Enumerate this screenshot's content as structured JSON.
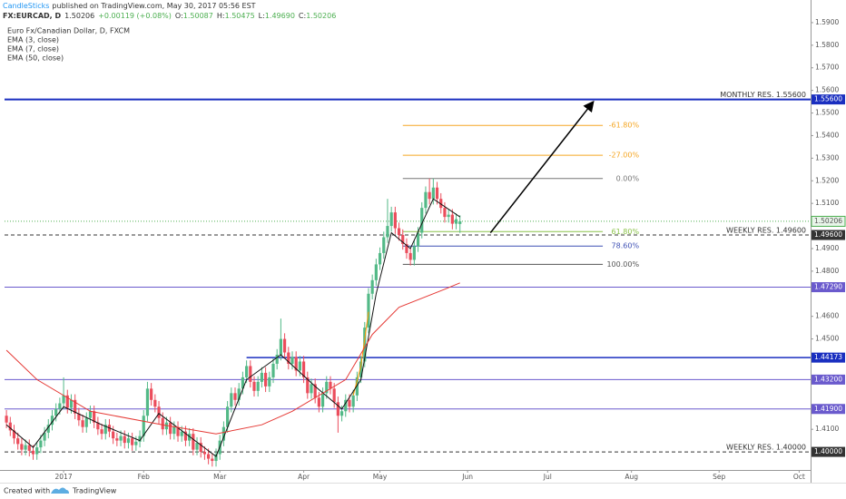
{
  "header": {
    "author": "CandleSticks",
    "published": "published on TradingView.com, May 30, 2017 05:56 EST",
    "symbol": "FX:EURCAD, D",
    "last": "1.50206",
    "change": "+0.00119 (+0.08%)",
    "ohlc": [
      {
        "label": "O:",
        "value": "1.50087"
      },
      {
        "label": "H:",
        "value": "1.50475"
      },
      {
        "label": "L:",
        "value": "1.49690"
      },
      {
        "label": "C:",
        "value": "1.50206"
      }
    ]
  },
  "footer": {
    "text": "Created with",
    "brand": "TradingView"
  },
  "chart_data": {
    "type": "candlestick",
    "title": "Euro Fx/Canadian Dollar, D, FXCM",
    "up_color": "#53b987",
    "down_color": "#eb4d5c",
    "grid": false,
    "ylim": [
      1.392,
      1.596
    ],
    "yticks": [
      {
        "value": 1.41,
        "label": "1.4100"
      },
      {
        "value": 1.45,
        "label": "1.4500"
      },
      {
        "value": 1.46,
        "label": "1.4600"
      },
      {
        "value": 1.48,
        "label": "1.4800"
      },
      {
        "value": 1.49,
        "label": "1.4900"
      },
      {
        "value": 1.51,
        "label": "1.5100"
      },
      {
        "value": 1.52,
        "label": "1.5200"
      },
      {
        "value": 1.53,
        "label": "1.5300"
      },
      {
        "value": 1.54,
        "label": "1.5400"
      },
      {
        "value": 1.55,
        "label": "1.5500"
      },
      {
        "value": 1.56,
        "label": "1.5600"
      },
      {
        "value": 1.57,
        "label": "1.5700"
      },
      {
        "value": 1.58,
        "label": "1.5800"
      },
      {
        "value": 1.59,
        "label": "1.5900"
      }
    ],
    "xlim": [
      -15.5,
      196
    ],
    "xticks": [
      {
        "value": 0,
        "label": "2017"
      },
      {
        "value": 21,
        "label": "Feb"
      },
      {
        "value": 41,
        "label": "Mar"
      },
      {
        "value": 63,
        "label": "Apr"
      },
      {
        "value": 83,
        "label": "May"
      },
      {
        "value": 106,
        "label": "Jun"
      },
      {
        "value": 127,
        "label": "Jul"
      },
      {
        "value": 149,
        "label": "Aug"
      },
      {
        "value": 172,
        "label": "Sep"
      },
      {
        "value": 193,
        "label": "Oct"
      }
    ],
    "x": [
      -15,
      -14,
      -13,
      -12,
      -11,
      -10,
      -9,
      -8,
      -7,
      -6,
      -5,
      -4,
      -3,
      -2,
      -1,
      0,
      1,
      2,
      3,
      4,
      5,
      6,
      7,
      8,
      9,
      10,
      11,
      12,
      13,
      14,
      15,
      16,
      17,
      18,
      19,
      20,
      21,
      22,
      23,
      24,
      25,
      26,
      27,
      28,
      29,
      30,
      31,
      32,
      33,
      34,
      35,
      36,
      37,
      38,
      39,
      40,
      41,
      42,
      43,
      44,
      45,
      46,
      47,
      48,
      49,
      50,
      51,
      52,
      53,
      54,
      55,
      56,
      57,
      58,
      59,
      60,
      61,
      62,
      63,
      64,
      65,
      66,
      67,
      68,
      69,
      70,
      71,
      72,
      73,
      74,
      75,
      76,
      77,
      78,
      79,
      80,
      81,
      82,
      83,
      84,
      85,
      86,
      87,
      88,
      89,
      90,
      91,
      92,
      93,
      94,
      95,
      96,
      97,
      98,
      99,
      100,
      101,
      102,
      103,
      104
    ],
    "candles": [
      [
        1.416,
        1.4185,
        1.4105,
        1.413
      ],
      [
        1.413,
        1.4155,
        1.407,
        1.4095
      ],
      [
        1.4095,
        1.412,
        1.4035,
        1.406
      ],
      [
        1.406,
        1.4085,
        1.401,
        1.4035
      ],
      [
        1.4035,
        1.406,
        1.3985,
        1.401
      ],
      [
        1.401,
        1.4055,
        1.3985,
        1.403
      ],
      [
        1.403,
        1.4055,
        1.398,
        1.4005
      ],
      [
        1.4005,
        1.403,
        1.3965,
        1.399
      ],
      [
        1.399,
        1.4045,
        1.3965,
        1.402
      ],
      [
        1.402,
        1.4075,
        1.3995,
        1.405
      ],
      [
        1.405,
        1.411,
        1.4025,
        1.4085
      ],
      [
        1.4085,
        1.4145,
        1.406,
        1.412
      ],
      [
        1.412,
        1.4185,
        1.4095,
        1.416
      ],
      [
        1.416,
        1.4215,
        1.4135,
        1.419
      ],
      [
        1.419,
        1.424,
        1.4165,
        1.4215
      ],
      [
        1.4215,
        1.433,
        1.419,
        1.425
      ],
      [
        1.425,
        1.4275,
        1.417,
        1.4195
      ],
      [
        1.4195,
        1.4255,
        1.417,
        1.423
      ],
      [
        1.423,
        1.4255,
        1.4145,
        1.417
      ],
      [
        1.417,
        1.4195,
        1.4115,
        1.414
      ],
      [
        1.414,
        1.4165,
        1.4085,
        1.411
      ],
      [
        1.411,
        1.4175,
        1.4085,
        1.415
      ],
      [
        1.415,
        1.4205,
        1.4125,
        1.418
      ],
      [
        1.418,
        1.4205,
        1.4105,
        1.413
      ],
      [
        1.413,
        1.4155,
        1.4075,
        1.41
      ],
      [
        1.41,
        1.4125,
        1.4055,
        1.408
      ],
      [
        1.408,
        1.4145,
        1.4055,
        1.412
      ],
      [
        1.412,
        1.4145,
        1.4065,
        1.409
      ],
      [
        1.409,
        1.4115,
        1.4035,
        1.406
      ],
      [
        1.406,
        1.4085,
        1.4025,
        1.405
      ],
      [
        1.405,
        1.4095,
        1.4025,
        1.407
      ],
      [
        1.407,
        1.4095,
        1.4015,
        1.404
      ],
      [
        1.404,
        1.4085,
        1.4015,
        1.406
      ],
      [
        1.406,
        1.4085,
        1.4005,
        1.403
      ],
      [
        1.403,
        1.407,
        1.4005,
        1.4045
      ],
      [
        1.4045,
        1.4095,
        1.402,
        1.407
      ],
      [
        1.407,
        1.4185,
        1.4045,
        1.416
      ],
      [
        1.416,
        1.431,
        1.4135,
        1.428
      ],
      [
        1.428,
        1.4305,
        1.4205,
        1.423
      ],
      [
        1.423,
        1.4255,
        1.4175,
        1.42
      ],
      [
        1.42,
        1.4225,
        1.4125,
        1.415
      ],
      [
        1.415,
        1.4175,
        1.4075,
        1.41
      ],
      [
        1.41,
        1.4155,
        1.4075,
        1.413
      ],
      [
        1.413,
        1.4155,
        1.4055,
        1.408
      ],
      [
        1.408,
        1.4135,
        1.4055,
        1.411
      ],
      [
        1.411,
        1.4135,
        1.4045,
        1.407
      ],
      [
        1.407,
        1.4115,
        1.4045,
        1.409
      ],
      [
        1.409,
        1.4115,
        1.4025,
        1.405
      ],
      [
        1.405,
        1.4105,
        1.4025,
        1.408
      ],
      [
        1.408,
        1.4105,
        1.3985,
        1.401
      ],
      [
        1.401,
        1.4065,
        1.3985,
        1.404
      ],
      [
        1.404,
        1.4065,
        1.3975,
        1.4
      ],
      [
        1.4,
        1.4025,
        1.3965,
        1.399
      ],
      [
        1.399,
        1.4015,
        1.3945,
        1.397
      ],
      [
        1.397,
        1.3995,
        1.3935,
        1.396
      ],
      [
        1.396,
        1.4015,
        1.3935,
        1.399
      ],
      [
        1.399,
        1.4075,
        1.3965,
        1.405
      ],
      [
        1.405,
        1.4135,
        1.4025,
        1.411
      ],
      [
        1.411,
        1.4225,
        1.4085,
        1.42
      ],
      [
        1.42,
        1.4285,
        1.4175,
        1.426
      ],
      [
        1.426,
        1.4285,
        1.4205,
        1.423
      ],
      [
        1.423,
        1.4305,
        1.4205,
        1.428
      ],
      [
        1.428,
        1.4355,
        1.4255,
        1.433
      ],
      [
        1.433,
        1.4405,
        1.4305,
        1.438
      ],
      [
        1.438,
        1.4405,
        1.4285,
        1.431
      ],
      [
        1.431,
        1.4335,
        1.4245,
        1.427
      ],
      [
        1.427,
        1.4335,
        1.4245,
        1.431
      ],
      [
        1.431,
        1.4375,
        1.4285,
        1.435
      ],
      [
        1.435,
        1.4375,
        1.4265,
        1.429
      ],
      [
        1.429,
        1.4355,
        1.4265,
        1.433
      ],
      [
        1.433,
        1.4415,
        1.4305,
        1.439
      ],
      [
        1.439,
        1.4455,
        1.4365,
        1.443
      ],
      [
        1.443,
        1.459,
        1.4405,
        1.45
      ],
      [
        1.45,
        1.4525,
        1.4415,
        1.444
      ],
      [
        1.444,
        1.4465,
        1.4365,
        1.439
      ],
      [
        1.439,
        1.4445,
        1.4365,
        1.442
      ],
      [
        1.442,
        1.4445,
        1.4335,
        1.436
      ],
      [
        1.436,
        1.4425,
        1.4335,
        1.44
      ],
      [
        1.44,
        1.4425,
        1.4305,
        1.433
      ],
      [
        1.433,
        1.4355,
        1.4235,
        1.426
      ],
      [
        1.426,
        1.4325,
        1.4235,
        1.43
      ],
      [
        1.43,
        1.4325,
        1.4215,
        1.424
      ],
      [
        1.424,
        1.4265,
        1.4175,
        1.42
      ],
      [
        1.42,
        1.4285,
        1.4175,
        1.426
      ],
      [
        1.426,
        1.4335,
        1.4235,
        1.431
      ],
      [
        1.431,
        1.4335,
        1.4255,
        1.428
      ],
      [
        1.428,
        1.4305,
        1.4195,
        1.422
      ],
      [
        1.422,
        1.4245,
        1.4085,
        1.416
      ],
      [
        1.416,
        1.4205,
        1.4135,
        1.418
      ],
      [
        1.418,
        1.4255,
        1.4155,
        1.423
      ],
      [
        1.423,
        1.4255,
        1.4175,
        1.42
      ],
      [
        1.42,
        1.4275,
        1.4175,
        1.425
      ],
      [
        1.425,
        1.4355,
        1.4225,
        1.433
      ],
      [
        1.433,
        1.4425,
        1.4305,
        1.44
      ],
      [
        1.44,
        1.4575,
        1.4375,
        1.455
      ],
      [
        1.455,
        1.4725,
        1.4525,
        1.47
      ],
      [
        1.47,
        1.4785,
        1.4675,
        1.476
      ],
      [
        1.476,
        1.4855,
        1.4735,
        1.483
      ],
      [
        1.483,
        1.4905,
        1.4805,
        1.488
      ],
      [
        1.488,
        1.4975,
        1.4855,
        1.495
      ],
      [
        1.495,
        1.512,
        1.4925,
        1.5
      ],
      [
        1.5,
        1.5085,
        1.4975,
        1.506
      ],
      [
        1.506,
        1.5085,
        1.4965,
        1.499
      ],
      [
        1.499,
        1.5015,
        1.4935,
        1.496
      ],
      [
        1.496,
        1.4985,
        1.4895,
        1.492
      ],
      [
        1.492,
        1.4945,
        1.4855,
        1.488
      ],
      [
        1.488,
        1.4905,
        1.4825,
        1.485
      ],
      [
        1.485,
        1.4935,
        1.4825,
        1.491
      ],
      [
        1.491,
        1.4995,
        1.4885,
        1.497
      ],
      [
        1.497,
        1.5105,
        1.4945,
        1.508
      ],
      [
        1.508,
        1.5175,
        1.5055,
        1.515
      ],
      [
        1.515,
        1.521,
        1.5095,
        1.512
      ],
      [
        1.512,
        1.521,
        1.5095,
        1.517
      ],
      [
        1.517,
        1.5195,
        1.5095,
        1.512
      ],
      [
        1.512,
        1.5145,
        1.5055,
        1.508
      ],
      [
        1.508,
        1.5105,
        1.5015,
        1.504
      ],
      [
        1.504,
        1.5075,
        1.5015,
        1.505
      ],
      [
        1.505,
        1.5075,
        1.4985,
        1.501
      ],
      [
        1.501,
        1.5055,
        1.4985,
        1.503
      ],
      [
        1.50087,
        1.50475,
        1.4969,
        1.50206
      ]
    ],
    "indicators": [
      {
        "name": "EMA (3, close)",
        "color": "#ff9800",
        "x": [
          76,
          78,
          80
        ],
        "values": [
          1.425,
          1.438,
          1.462
        ]
      },
      {
        "name": "EMA (7, close)",
        "color": "#111111",
        "x": [
          -15,
          -8,
          0,
          10,
          20,
          25,
          40,
          48,
          57,
          66,
          73,
          78,
          82,
          86,
          91,
          97,
          104
        ],
        "values": [
          1.412,
          1.402,
          1.42,
          1.412,
          1.405,
          1.417,
          1.398,
          1.432,
          1.443,
          1.429,
          1.419,
          1.432,
          1.47,
          1.497,
          1.49,
          1.512,
          1.504
        ]
      },
      {
        "name": "EMA (50, close)",
        "color": "#e53935",
        "x": [
          -15,
          -7,
          7,
          26,
          40,
          52,
          60,
          74,
          81,
          88,
          100,
          104
        ],
        "values": [
          1.445,
          1.432,
          1.418,
          1.412,
          1.408,
          1.412,
          1.418,
          1.432,
          1.452,
          1.464,
          1.472,
          1.4748
        ]
      }
    ],
    "levels": [
      {
        "value": 1.556,
        "value_label": "1.55600",
        "text": "MONTHLY RES. 1.55600",
        "color": "#1a2fc0",
        "style": "solid",
        "width": 2
      },
      {
        "value": 1.496,
        "value_label": "1.49600",
        "text": "WEEKLY RES. 1.49600",
        "color": "#333333",
        "style": "dashed",
        "width": 1
      },
      {
        "value": 1.4729,
        "value_label": "1.47290",
        "color": "#6a5acd",
        "style": "solid",
        "width": 1
      },
      {
        "value": 1.44173,
        "value_label": "1.44173",
        "color": "#1a2fc0",
        "style": "solid",
        "width": 1.5,
        "x_start": 48
      },
      {
        "value": 1.432,
        "value_label": "1.43200",
        "color": "#6a5acd",
        "style": "solid",
        "width": 1
      },
      {
        "value": 1.419,
        "value_label": "1.41900",
        "color": "#6a5acd",
        "style": "solid",
        "width": 1
      },
      {
        "value": 1.4,
        "value_label": "1.40000",
        "text": "WEEKLY RES. 1.40000",
        "color": "#333333",
        "style": "dashed",
        "width": 1
      }
    ],
    "current": {
      "value": 1.50206,
      "value_label": "1.50206",
      "color": "#4caf50"
    },
    "fib": {
      "x": [
        89,
        151
      ],
      "levels": [
        {
          "value": 1.5445,
          "label": "-61.80%",
          "color": "#f5a623"
        },
        {
          "value": 1.5313,
          "label": "-27.00%",
          "color": "#f5a623"
        },
        {
          "value": 1.521,
          "label": "0.00%",
          "color": "#777777"
        },
        {
          "value": 1.4975,
          "label": "61.80%",
          "color": "#8bc34a"
        },
        {
          "value": 1.4911,
          "label": "78.60%",
          "color": "#3f51b5"
        },
        {
          "value": 1.483,
          "label": "100.00%",
          "color": "#555555"
        }
      ]
    },
    "arrow": {
      "from": [
        112,
        1.497
      ],
      "to": [
        139,
        1.555
      ]
    }
  }
}
